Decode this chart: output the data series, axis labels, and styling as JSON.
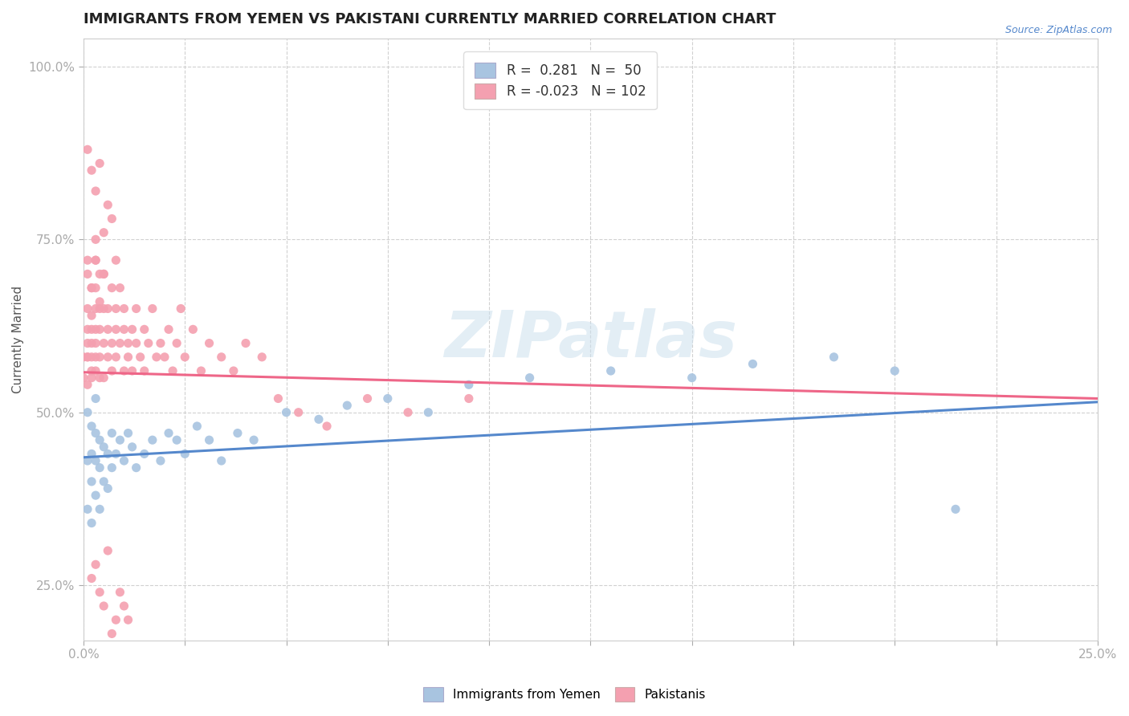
{
  "title": "IMMIGRANTS FROM YEMEN VS PAKISTANI CURRENTLY MARRIED CORRELATION CHART",
  "source_text": "Source: ZipAtlas.com",
  "ylabel": "Currently Married",
  "xlim": [
    0.0,
    0.25
  ],
  "ylim": [
    0.17,
    1.04
  ],
  "yticks": [
    0.25,
    0.5,
    0.75,
    1.0
  ],
  "yticklabels": [
    "25.0%",
    "50.0%",
    "75.0%",
    "100.0%"
  ],
  "yemen_R": 0.281,
  "yemen_N": 50,
  "pakistan_R": -0.023,
  "pakistan_N": 102,
  "yemen_color": "#a8c4e0",
  "pakistan_color": "#f4a0b0",
  "yemen_line_color": "#5588cc",
  "pakistan_line_color": "#ee6688",
  "watermark_color": "#cce0ee",
  "title_fontsize": 13,
  "axis_label_fontsize": 11,
  "tick_fontsize": 11,
  "legend_fontsize": 12,
  "yemen_x": [
    0.001,
    0.001,
    0.001,
    0.002,
    0.002,
    0.002,
    0.002,
    0.003,
    0.003,
    0.003,
    0.003,
    0.004,
    0.004,
    0.004,
    0.005,
    0.005,
    0.006,
    0.006,
    0.007,
    0.007,
    0.008,
    0.009,
    0.01,
    0.011,
    0.012,
    0.013,
    0.015,
    0.017,
    0.019,
    0.021,
    0.023,
    0.025,
    0.028,
    0.031,
    0.034,
    0.038,
    0.042,
    0.05,
    0.058,
    0.065,
    0.075,
    0.085,
    0.095,
    0.11,
    0.13,
    0.15,
    0.165,
    0.185,
    0.2,
    0.215
  ],
  "yemen_y": [
    0.36,
    0.43,
    0.5,
    0.34,
    0.4,
    0.44,
    0.48,
    0.38,
    0.43,
    0.47,
    0.52,
    0.36,
    0.42,
    0.46,
    0.4,
    0.45,
    0.39,
    0.44,
    0.42,
    0.47,
    0.44,
    0.46,
    0.43,
    0.47,
    0.45,
    0.42,
    0.44,
    0.46,
    0.43,
    0.47,
    0.46,
    0.44,
    0.48,
    0.46,
    0.43,
    0.47,
    0.46,
    0.5,
    0.49,
    0.51,
    0.52,
    0.5,
    0.54,
    0.55,
    0.56,
    0.55,
    0.57,
    0.58,
    0.56,
    0.36
  ],
  "pakistan_x": [
    0.0,
    0.0,
    0.001,
    0.001,
    0.001,
    0.001,
    0.001,
    0.001,
    0.001,
    0.001,
    0.002,
    0.002,
    0.002,
    0.002,
    0.002,
    0.002,
    0.002,
    0.003,
    0.003,
    0.003,
    0.003,
    0.003,
    0.003,
    0.003,
    0.003,
    0.004,
    0.004,
    0.004,
    0.004,
    0.004,
    0.005,
    0.005,
    0.005,
    0.005,
    0.006,
    0.006,
    0.006,
    0.007,
    0.007,
    0.007,
    0.008,
    0.008,
    0.008,
    0.009,
    0.009,
    0.01,
    0.01,
    0.01,
    0.011,
    0.011,
    0.012,
    0.012,
    0.013,
    0.013,
    0.014,
    0.015,
    0.015,
    0.016,
    0.017,
    0.018,
    0.019,
    0.02,
    0.021,
    0.022,
    0.023,
    0.024,
    0.025,
    0.027,
    0.029,
    0.031,
    0.034,
    0.037,
    0.04,
    0.044,
    0.048,
    0.053,
    0.06,
    0.07,
    0.08,
    0.095,
    0.003,
    0.004,
    0.005,
    0.006,
    0.007,
    0.008,
    0.002,
    0.003,
    0.004,
    0.005,
    0.002,
    0.003,
    0.004,
    0.005,
    0.006,
    0.007,
    0.008,
    0.009,
    0.01,
    0.011,
    0.001,
    0.002
  ],
  "pakistan_y": [
    0.55,
    0.58,
    0.62,
    0.58,
    0.54,
    0.6,
    0.65,
    0.58,
    0.7,
    0.72,
    0.55,
    0.62,
    0.58,
    0.68,
    0.64,
    0.6,
    0.56,
    0.65,
    0.6,
    0.72,
    0.56,
    0.62,
    0.68,
    0.58,
    0.75,
    0.62,
    0.58,
    0.65,
    0.7,
    0.55,
    0.6,
    0.65,
    0.55,
    0.7,
    0.62,
    0.58,
    0.65,
    0.6,
    0.68,
    0.56,
    0.62,
    0.58,
    0.65,
    0.6,
    0.68,
    0.62,
    0.56,
    0.65,
    0.6,
    0.58,
    0.62,
    0.56,
    0.6,
    0.65,
    0.58,
    0.62,
    0.56,
    0.6,
    0.65,
    0.58,
    0.6,
    0.58,
    0.62,
    0.56,
    0.6,
    0.65,
    0.58,
    0.62,
    0.56,
    0.6,
    0.58,
    0.56,
    0.6,
    0.58,
    0.52,
    0.5,
    0.48,
    0.52,
    0.5,
    0.52,
    0.82,
    0.86,
    0.76,
    0.8,
    0.78,
    0.72,
    0.68,
    0.72,
    0.66,
    0.7,
    0.26,
    0.28,
    0.24,
    0.22,
    0.3,
    0.18,
    0.2,
    0.24,
    0.22,
    0.2,
    0.88,
    0.85
  ]
}
